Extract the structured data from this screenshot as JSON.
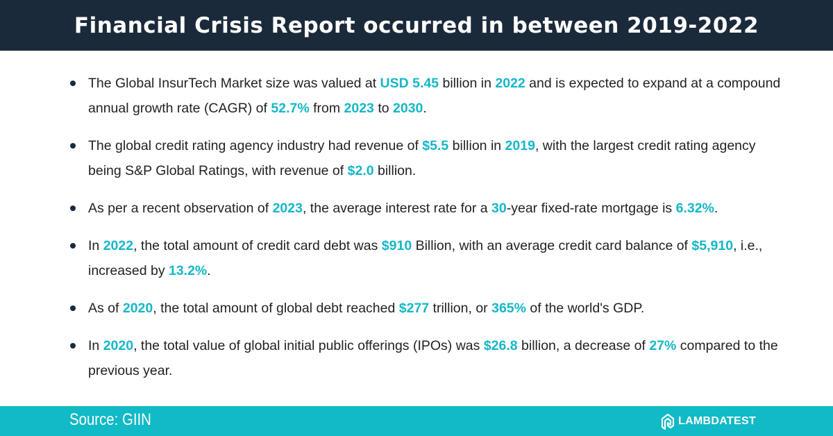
{
  "title": "Financial Crisis Report occurred in between 2019-2022",
  "colors": {
    "header_bg": "#1b2a3b",
    "highlight": "#15b7c8",
    "footer_bg": "#10bac6"
  },
  "bullets": [
    [
      {
        "t": "The Global InsurTech Market size was valued at "
      },
      {
        "t": "USD 5.45",
        "h": true
      },
      {
        "t": " billion in "
      },
      {
        "t": "2022",
        "h": true
      },
      {
        "t": " and is expected to expand at a compound annual growth rate (CAGR) of "
      },
      {
        "t": "52.7%",
        "h": true
      },
      {
        "t": " from "
      },
      {
        "t": "2023",
        "h": true
      },
      {
        "t": " to "
      },
      {
        "t": "2030",
        "h": true
      },
      {
        "t": "."
      }
    ],
    [
      {
        "t": "The global credit rating agency industry had revenue of "
      },
      {
        "t": "$5.5",
        "h": true
      },
      {
        "t": " billion in "
      },
      {
        "t": "2019",
        "h": true
      },
      {
        "t": ", with the largest credit rating agency being S&P Global Ratings, with revenue of "
      },
      {
        "t": "$2.0",
        "h": true
      },
      {
        "t": " billion."
      }
    ],
    [
      {
        "t": "As per a recent observation of "
      },
      {
        "t": "2023",
        "h": true
      },
      {
        "t": ", the average interest rate for a "
      },
      {
        "t": "30",
        "h": true
      },
      {
        "t": "-year fixed-rate mortgage is "
      },
      {
        "t": "6.32%",
        "h": true
      },
      {
        "t": "."
      }
    ],
    [
      {
        "t": "In "
      },
      {
        "t": "2022",
        "h": true
      },
      {
        "t": ", the total amount of credit card debt was "
      },
      {
        "t": "$910",
        "h": true
      },
      {
        "t": " Billion, with an average credit card balance of "
      },
      {
        "t": "$5,910",
        "h": true
      },
      {
        "t": ", i.e., increased by "
      },
      {
        "t": "13.2%",
        "h": true
      },
      {
        "t": "."
      }
    ],
    [
      {
        "t": "As of "
      },
      {
        "t": "2020",
        "h": true
      },
      {
        "t": ", the total amount of global debt reached "
      },
      {
        "t": "$277",
        "h": true
      },
      {
        "t": " trillion, or "
      },
      {
        "t": "365%",
        "h": true
      },
      {
        "t": " of the world's GDP."
      }
    ],
    [
      {
        "t": "In "
      },
      {
        "t": "2020",
        "h": true
      },
      {
        "t": ", the total value of global initial public offerings (IPOs) was "
      },
      {
        "t": "$26.8",
        "h": true
      },
      {
        "t": " billion, a decrease of "
      },
      {
        "t": "27%",
        "h": true
      },
      {
        "t": " compared to the previous year."
      }
    ]
  ],
  "footer": {
    "source": "Source: GIIN",
    "brand": "LAMBDATEST",
    "brand_icon": "lambdatest-logo-icon"
  }
}
